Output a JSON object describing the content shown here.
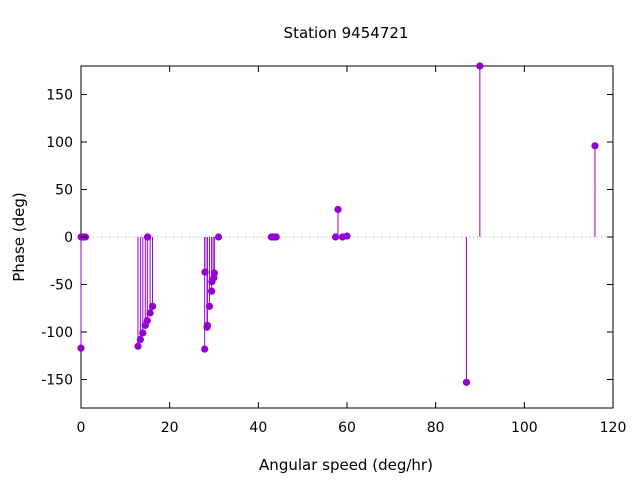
{
  "chart_data": {
    "type": "scatter",
    "style": "impulses-with-markers",
    "title": "Station 9454721",
    "xlabel": "Angular speed (deg/hr)",
    "ylabel": "Phase (deg)",
    "xlim": [
      0,
      120
    ],
    "ylim": [
      -180,
      180
    ],
    "xticks": [
      0,
      20,
      40,
      60,
      80,
      100,
      120
    ],
    "yticks": [
      -150,
      -100,
      -50,
      0,
      50,
      100,
      150
    ],
    "zero_line": "dotted",
    "grid": false,
    "legend": "none",
    "series": [
      {
        "color": "#9400d3",
        "points": [
          [
            0.0,
            -117
          ],
          [
            0.04,
            0
          ],
          [
            0.08,
            0
          ],
          [
            0.5,
            0
          ],
          [
            1.0,
            0
          ],
          [
            12.85,
            -115
          ],
          [
            13.4,
            -108
          ],
          [
            13.94,
            -101
          ],
          [
            14.5,
            -93
          ],
          [
            14.96,
            -88
          ],
          [
            15.0,
            0
          ],
          [
            15.04,
            0
          ],
          [
            15.59,
            -80
          ],
          [
            16.14,
            -73
          ],
          [
            27.9,
            -118
          ],
          [
            27.97,
            -37
          ],
          [
            28.44,
            -95
          ],
          [
            28.51,
            -93
          ],
          [
            28.98,
            -73
          ],
          [
            29.46,
            -57
          ],
          [
            29.53,
            -47
          ],
          [
            29.96,
            -43
          ],
          [
            30.08,
            -38
          ],
          [
            31.02,
            0
          ],
          [
            42.93,
            0
          ],
          [
            43.48,
            0
          ],
          [
            44.03,
            0
          ],
          [
            57.42,
            0
          ],
          [
            57.97,
            29
          ],
          [
            58.98,
            0
          ],
          [
            60.0,
            1
          ],
          [
            86.95,
            -153
          ],
          [
            89.97,
            180
          ],
          [
            115.94,
            96
          ]
        ]
      }
    ]
  }
}
